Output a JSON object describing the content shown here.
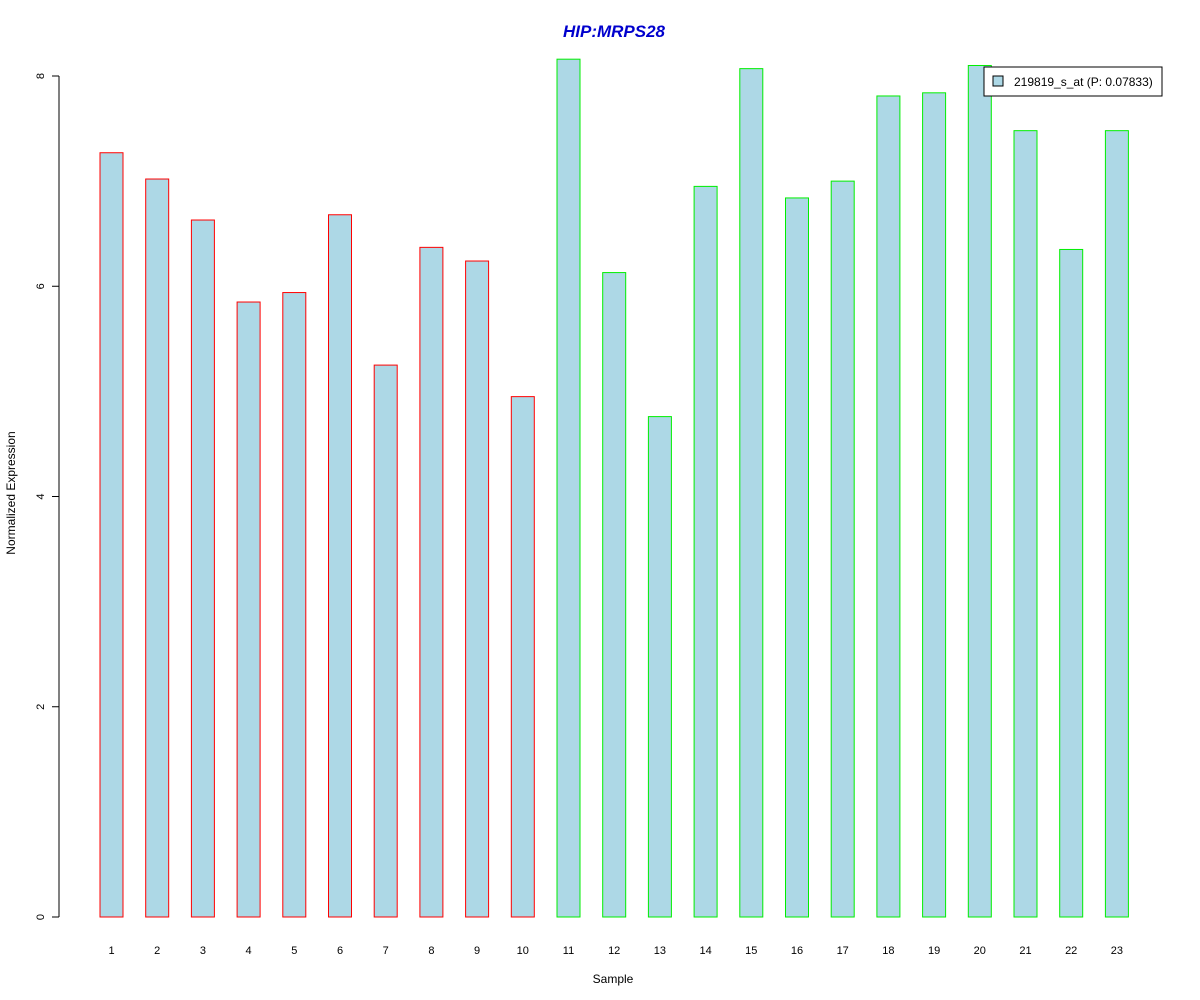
{
  "chart_data": {
    "type": "bar",
    "title": "HIP:MRPS28",
    "xlabel": "Sample",
    "ylabel": "Normalized Expression",
    "categories": [
      "1",
      "2",
      "3",
      "4",
      "5",
      "6",
      "7",
      "8",
      "9",
      "10",
      "11",
      "12",
      "13",
      "14",
      "15",
      "16",
      "17",
      "18",
      "19",
      "20",
      "21",
      "22",
      "23"
    ],
    "series": [
      {
        "name": "219819_s_at (P: 0.07833)",
        "values": [
          7.27,
          7.02,
          6.63,
          5.85,
          5.94,
          6.68,
          5.25,
          6.37,
          6.24,
          4.95,
          8.16,
          6.13,
          4.76,
          6.95,
          8.07,
          6.84,
          7.0,
          7.81,
          7.84,
          8.1,
          7.48,
          6.35,
          7.48
        ]
      }
    ],
    "groups": [
      {
        "samples": [
          "1",
          "2",
          "3",
          "4",
          "5",
          "6",
          "7",
          "8",
          "9",
          "10"
        ],
        "border_color": "#ff0000"
      },
      {
        "samples": [
          "11",
          "12",
          "13",
          "14",
          "15",
          "16",
          "17",
          "18",
          "19",
          "20",
          "21",
          "22",
          "23"
        ],
        "border_color": "#00ee00"
      }
    ],
    "ylim": [
      0,
      8
    ],
    "y_ticks": [
      "0",
      "2",
      "4",
      "6",
      "8"
    ],
    "legend_position": "top-right",
    "grid": false,
    "colors": {
      "bar_fill": "#add8e6",
      "title": "#0000cd"
    }
  }
}
